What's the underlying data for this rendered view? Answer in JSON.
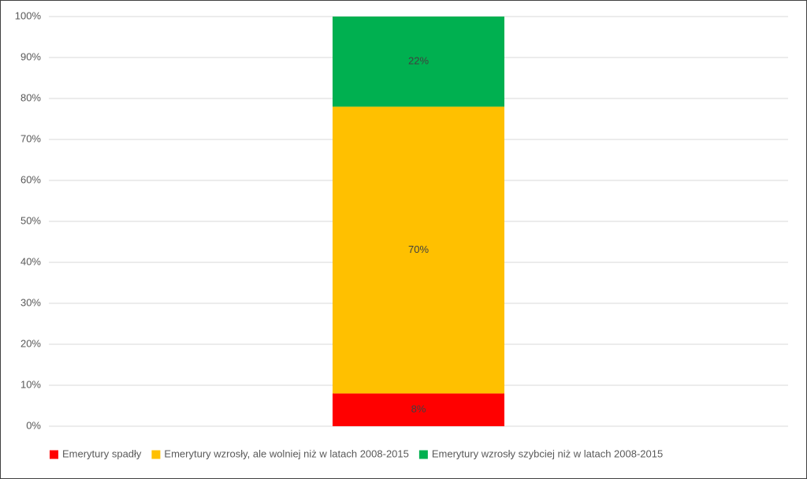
{
  "chart_data": {
    "type": "bar",
    "stacked": true,
    "categories": [
      null
    ],
    "series": [
      {
        "name": "Emerytury spadły",
        "color": "#ff0000",
        "values": [
          8
        ],
        "value_labels": [
          "8%"
        ]
      },
      {
        "name": "Emerytury wzrosły, ale wolniej niż w latach 2008-2015",
        "color": "#ffc000",
        "values": [
          70
        ],
        "value_labels": [
          "70%"
        ]
      },
      {
        "name": "Emerytury wzrosły szybciej niż w latach 2008-2015",
        "color": "#00b050",
        "values": [
          22
        ],
        "value_labels": [
          "22%"
        ]
      }
    ],
    "ylim": [
      0,
      100
    ],
    "yticks": [
      {
        "value": 0,
        "label": "0%"
      },
      {
        "value": 10,
        "label": "10%"
      },
      {
        "value": 20,
        "label": "20%"
      },
      {
        "value": 30,
        "label": "30%"
      },
      {
        "value": 40,
        "label": "40%"
      },
      {
        "value": 50,
        "label": "50%"
      },
      {
        "value": 60,
        "label": "60%"
      },
      {
        "value": 70,
        "label": "70%"
      },
      {
        "value": 80,
        "label": "80%"
      },
      {
        "value": 90,
        "label": "90%"
      },
      {
        "value": 100,
        "label": "100%"
      }
    ],
    "grid": true,
    "legend": "bottom"
  }
}
